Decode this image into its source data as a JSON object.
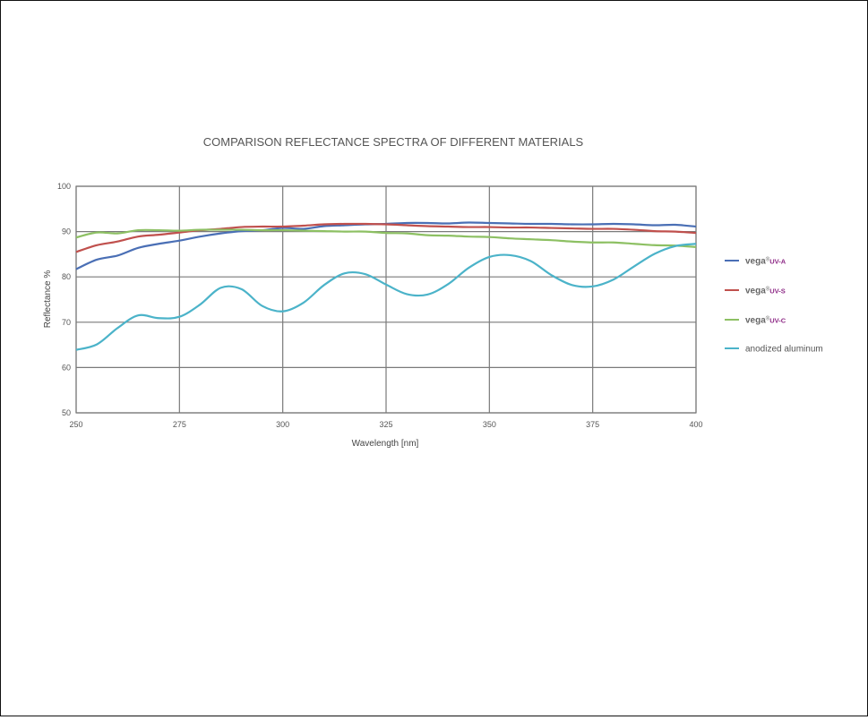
{
  "chart_data": {
    "type": "line",
    "title": "COMPARISON REFLECTANCE SPECTRA OF DIFFERENT MATERIALS",
    "xlabel": "Wavelength [nm]",
    "ylabel": "Reflectance %",
    "xlim": [
      250,
      400
    ],
    "ylim": [
      50,
      100
    ],
    "xticks": [
      250,
      275,
      300,
      325,
      350,
      375,
      400
    ],
    "yticks": [
      50,
      60,
      70,
      80,
      90,
      100
    ],
    "grid": true,
    "legend_position": "right",
    "series": [
      {
        "name_main": "vega",
        "name_sup": "®",
        "name_suffix": "UV-A",
        "color": "#4a6fb5",
        "points": [
          [
            250,
            81.7
          ],
          [
            255,
            83.8
          ],
          [
            260,
            84.7
          ],
          [
            265,
            86.4
          ],
          [
            270,
            87.3
          ],
          [
            275,
            88.0
          ],
          [
            280,
            88.9
          ],
          [
            285,
            89.6
          ],
          [
            290,
            90.1
          ],
          [
            295,
            90.3
          ],
          [
            300,
            90.8
          ],
          [
            305,
            90.6
          ],
          [
            310,
            91.2
          ],
          [
            315,
            91.4
          ],
          [
            320,
            91.6
          ],
          [
            325,
            91.7
          ],
          [
            330,
            91.9
          ],
          [
            335,
            91.9
          ],
          [
            340,
            91.8
          ],
          [
            345,
            92.0
          ],
          [
            350,
            91.9
          ],
          [
            355,
            91.8
          ],
          [
            360,
            91.7
          ],
          [
            365,
            91.7
          ],
          [
            370,
            91.6
          ],
          [
            375,
            91.6
          ],
          [
            380,
            91.7
          ],
          [
            385,
            91.6
          ],
          [
            390,
            91.4
          ],
          [
            395,
            91.5
          ],
          [
            400,
            91.1
          ]
        ]
      },
      {
        "name_main": "vega",
        "name_sup": "®",
        "name_suffix": "UV-S",
        "color": "#c0504d",
        "points": [
          [
            250,
            85.5
          ],
          [
            255,
            87.0
          ],
          [
            260,
            87.8
          ],
          [
            265,
            88.9
          ],
          [
            270,
            89.3
          ],
          [
            275,
            89.8
          ],
          [
            280,
            90.3
          ],
          [
            285,
            90.6
          ],
          [
            290,
            91.0
          ],
          [
            295,
            91.1
          ],
          [
            300,
            91.1
          ],
          [
            305,
            91.3
          ],
          [
            310,
            91.6
          ],
          [
            315,
            91.7
          ],
          [
            320,
            91.7
          ],
          [
            325,
            91.6
          ],
          [
            330,
            91.4
          ],
          [
            335,
            91.2
          ],
          [
            340,
            91.1
          ],
          [
            345,
            91.0
          ],
          [
            350,
            91.0
          ],
          [
            355,
            90.9
          ],
          [
            360,
            90.9
          ],
          [
            365,
            90.8
          ],
          [
            370,
            90.7
          ],
          [
            375,
            90.6
          ],
          [
            380,
            90.6
          ],
          [
            385,
            90.4
          ],
          [
            390,
            90.1
          ],
          [
            395,
            90.0
          ],
          [
            400,
            89.7
          ]
        ]
      },
      {
        "name_main": "vega",
        "name_sup": "®",
        "name_suffix": "UV-C",
        "color": "#8dc063",
        "points": [
          [
            250,
            88.7
          ],
          [
            255,
            89.8
          ],
          [
            260,
            89.6
          ],
          [
            265,
            90.3
          ],
          [
            270,
            90.3
          ],
          [
            275,
            90.2
          ],
          [
            280,
            90.4
          ],
          [
            285,
            90.4
          ],
          [
            290,
            90.4
          ],
          [
            295,
            90.3
          ],
          [
            300,
            90.3
          ],
          [
            305,
            90.2
          ],
          [
            310,
            90.1
          ],
          [
            315,
            90.0
          ],
          [
            320,
            90.0
          ],
          [
            325,
            89.7
          ],
          [
            330,
            89.6
          ],
          [
            335,
            89.2
          ],
          [
            340,
            89.1
          ],
          [
            345,
            88.9
          ],
          [
            350,
            88.8
          ],
          [
            355,
            88.5
          ],
          [
            360,
            88.3
          ],
          [
            365,
            88.1
          ],
          [
            370,
            87.8
          ],
          [
            375,
            87.6
          ],
          [
            380,
            87.6
          ],
          [
            385,
            87.3
          ],
          [
            390,
            87.0
          ],
          [
            395,
            86.9
          ],
          [
            400,
            86.6
          ]
        ]
      },
      {
        "name_main": "anodized aluminum",
        "name_sup": "",
        "name_suffix": "",
        "color": "#4bb3c9",
        "points": [
          [
            250,
            63.9
          ],
          [
            255,
            65.1
          ],
          [
            260,
            68.7
          ],
          [
            265,
            71.5
          ],
          [
            270,
            70.9
          ],
          [
            275,
            71.2
          ],
          [
            280,
            73.9
          ],
          [
            285,
            77.6
          ],
          [
            290,
            77.3
          ],
          [
            295,
            73.6
          ],
          [
            300,
            72.4
          ],
          [
            305,
            74.3
          ],
          [
            310,
            78.2
          ],
          [
            315,
            80.8
          ],
          [
            320,
            80.6
          ],
          [
            325,
            78.3
          ],
          [
            330,
            76.2
          ],
          [
            335,
            76.1
          ],
          [
            340,
            78.4
          ],
          [
            345,
            82.0
          ],
          [
            350,
            84.4
          ],
          [
            355,
            84.8
          ],
          [
            360,
            83.5
          ],
          [
            365,
            80.4
          ],
          [
            370,
            78.2
          ],
          [
            375,
            77.9
          ],
          [
            380,
            79.4
          ],
          [
            385,
            82.3
          ],
          [
            390,
            85.1
          ],
          [
            395,
            86.8
          ],
          [
            400,
            87.3
          ]
        ]
      }
    ]
  }
}
